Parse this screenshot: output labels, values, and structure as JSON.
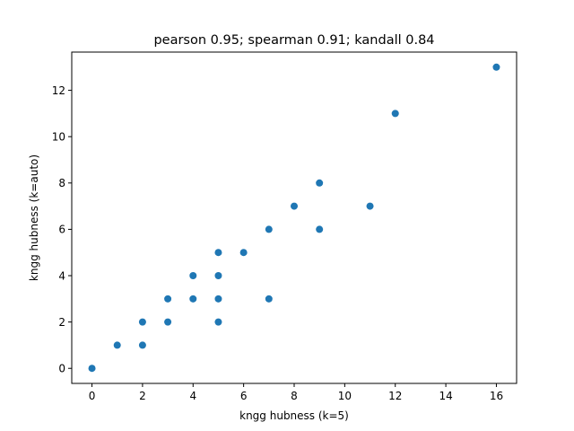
{
  "chart_data": {
    "type": "scatter",
    "title": "pearson 0.95; spearman 0.91; kandall 0.84",
    "xlabel": "kngg hubness (k=5)",
    "ylabel": "kngg hubness (k=auto)",
    "xlim": [
      -0.8,
      16.8
    ],
    "ylim": [
      -0.65,
      13.65
    ],
    "xticks": [
      0,
      2,
      4,
      6,
      8,
      10,
      12,
      14,
      16
    ],
    "yticks": [
      0,
      2,
      4,
      6,
      8,
      10,
      12
    ],
    "grid": false,
    "marker_color": "#1f77b4",
    "points": [
      {
        "x": 0,
        "y": 0
      },
      {
        "x": 1,
        "y": 1
      },
      {
        "x": 2,
        "y": 1
      },
      {
        "x": 2,
        "y": 2
      },
      {
        "x": 3,
        "y": 2
      },
      {
        "x": 3,
        "y": 3
      },
      {
        "x": 4,
        "y": 3
      },
      {
        "x": 4,
        "y": 4
      },
      {
        "x": 5,
        "y": 2
      },
      {
        "x": 5,
        "y": 3
      },
      {
        "x": 5,
        "y": 4
      },
      {
        "x": 5,
        "y": 5
      },
      {
        "x": 6,
        "y": 5
      },
      {
        "x": 7,
        "y": 3
      },
      {
        "x": 7,
        "y": 6
      },
      {
        "x": 8,
        "y": 7
      },
      {
        "x": 9,
        "y": 6
      },
      {
        "x": 9,
        "y": 8
      },
      {
        "x": 11,
        "y": 7
      },
      {
        "x": 12,
        "y": 11
      },
      {
        "x": 16,
        "y": 13
      }
    ]
  }
}
